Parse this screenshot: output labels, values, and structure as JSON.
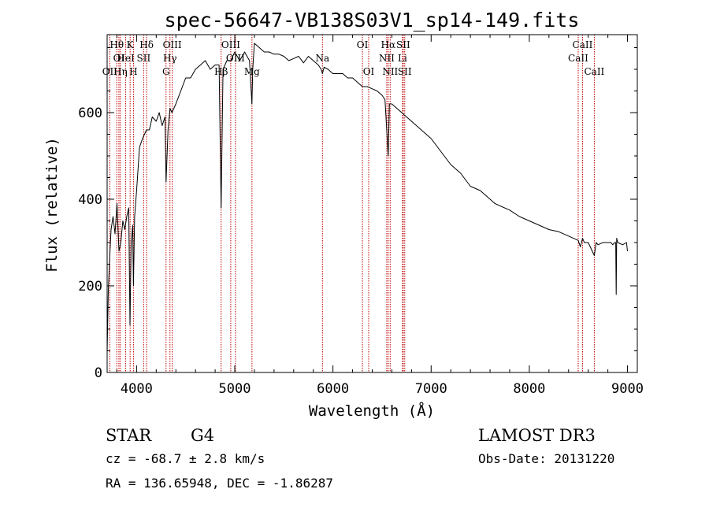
{
  "chart_data": {
    "type": "line",
    "title": "spec-56647-VB138S03V1_sp14-149.fits",
    "xlabel": "Wavelength (Å)",
    "ylabel": "Flux (relative)",
    "xlim": [
      3700,
      9100
    ],
    "ylim": [
      0,
      780
    ],
    "x_ticks": [
      {
        "value": 4000,
        "label": "4000"
      },
      {
        "value": 5000,
        "label": "5000"
      },
      {
        "value": 6000,
        "label": "6000"
      },
      {
        "value": 7000,
        "label": "7000"
      },
      {
        "value": 8000,
        "label": "8000"
      },
      {
        "value": 9000,
        "label": "9000"
      }
    ],
    "y_ticks": [
      {
        "value": 0,
        "label": "0"
      },
      {
        "value": 200,
        "label": "200"
      },
      {
        "value": 400,
        "label": "400"
      },
      {
        "value": 600,
        "label": "600"
      }
    ],
    "grid": false,
    "line_color": "#000000",
    "marker_color": "#c00000",
    "spectral_lines": [
      {
        "wavelength": 3727,
        "label": "OII",
        "row": 3
      },
      {
        "wavelength": 3798,
        "label": "Hθ",
        "row": 1
      },
      {
        "wavelength": 3820,
        "label": "OI",
        "row": 2
      },
      {
        "wavelength": 3835,
        "label": "Hη",
        "row": 3
      },
      {
        "wavelength": 3889,
        "label": "HeI",
        "row": 2
      },
      {
        "wavelength": 3934,
        "label": "K",
        "row": 1
      },
      {
        "wavelength": 3968,
        "label": "H",
        "row": 3
      },
      {
        "wavelength": 4072,
        "label": "SII",
        "row": 2
      },
      {
        "wavelength": 4102,
        "label": "Hδ",
        "row": 1
      },
      {
        "wavelength": 4300,
        "label": "G",
        "row": 3
      },
      {
        "wavelength": 4340,
        "label": "Hγ",
        "row": 2
      },
      {
        "wavelength": 4363,
        "label": "OIII",
        "row": 1
      },
      {
        "wavelength": 4861,
        "label": "Hβ",
        "row": 3
      },
      {
        "wavelength": 4959,
        "label": "OIII",
        "row": 1
      },
      {
        "wavelength": 5007,
        "label": "OIII",
        "row": 2
      },
      {
        "wavelength": 5175,
        "label": "Mg",
        "row": 3
      },
      {
        "wavelength": 5893,
        "label": "Na",
        "row": 2
      },
      {
        "wavelength": 6300,
        "label": "OI",
        "row": 1
      },
      {
        "wavelength": 6364,
        "label": "OI",
        "row": 3
      },
      {
        "wavelength": 6548,
        "label": "NII",
        "row": 2
      },
      {
        "wavelength": 6563,
        "label": "Hα",
        "row": 1
      },
      {
        "wavelength": 6583,
        "label": "NII",
        "row": 3
      },
      {
        "wavelength": 6708,
        "label": "Li",
        "row": 2
      },
      {
        "wavelength": 6716,
        "label": "SII",
        "row": 1
      },
      {
        "wavelength": 6731,
        "label": "SII",
        "row": 3
      },
      {
        "wavelength": 8498,
        "label": "CaII",
        "row": 2
      },
      {
        "wavelength": 8542,
        "label": "CaII",
        "row": 1
      },
      {
        "wavelength": 8662,
        "label": "CaII",
        "row": 3
      }
    ],
    "spectrum": {
      "x": [
        3700,
        3712,
        3725,
        3740,
        3760,
        3780,
        3800,
        3820,
        3840,
        3860,
        3880,
        3900,
        3920,
        3933,
        3945,
        3960,
        3968,
        3980,
        4000,
        4030,
        4060,
        4100,
        4130,
        4160,
        4200,
        4230,
        4260,
        4290,
        4300,
        4320,
        4340,
        4360,
        4400,
        4450,
        4500,
        4550,
        4600,
        4650,
        4700,
        4750,
        4800,
        4840,
        4861,
        4880,
        4920,
        4960,
        5000,
        5050,
        5100,
        5150,
        5175,
        5183,
        5200,
        5250,
        5300,
        5350,
        5400,
        5450,
        5500,
        5550,
        5600,
        5650,
        5700,
        5750,
        5800,
        5850,
        5880,
        5893,
        5910,
        5950,
        6000,
        6050,
        6100,
        6150,
        6200,
        6250,
        6300,
        6350,
        6400,
        6450,
        6500,
        6530,
        6548,
        6563,
        6575,
        6600,
        6650,
        6700,
        6750,
        6800,
        6900,
        7000,
        7100,
        7200,
        7300,
        7400,
        7500,
        7600,
        7650,
        7700,
        7800,
        7900,
        8000,
        8100,
        8200,
        8300,
        8400,
        8498,
        8520,
        8542,
        8560,
        8600,
        8662,
        8680,
        8700,
        8750,
        8800,
        8830,
        8850,
        8870,
        8880,
        8885,
        8890,
        8900,
        8950,
        8990,
        9000
      ],
      "flux": [
        45,
        190,
        260,
        330,
        360,
        320,
        390,
        280,
        300,
        350,
        330,
        360,
        380,
        110,
        300,
        340,
        200,
        360,
        420,
        520,
        540,
        560,
        560,
        590,
        580,
        600,
        570,
        590,
        440,
        560,
        610,
        600,
        620,
        650,
        680,
        680,
        700,
        710,
        720,
        700,
        710,
        710,
        380,
        700,
        720,
        720,
        740,
        720,
        740,
        720,
        620,
        700,
        760,
        750,
        740,
        740,
        735,
        735,
        730,
        720,
        725,
        730,
        715,
        730,
        720,
        710,
        700,
        690,
        705,
        700,
        690,
        690,
        690,
        680,
        680,
        670,
        660,
        660,
        655,
        650,
        640,
        630,
        560,
        500,
        620,
        620,
        610,
        600,
        590,
        580,
        560,
        540,
        510,
        480,
        460,
        430,
        420,
        400,
        390,
        385,
        375,
        360,
        350,
        340,
        330,
        325,
        315,
        305,
        290,
        310,
        300,
        300,
        270,
        300,
        295,
        300,
        300,
        300,
        295,
        300,
        300,
        180,
        310,
        300,
        295,
        300,
        280
      ]
    }
  },
  "info": {
    "object_class": "STAR",
    "subclass": "G4",
    "survey": "LAMOST DR3",
    "velocity": "cz = -68.7 ± 2.8 km/s",
    "obs_date": "Obs-Date: 20131220",
    "coordinates": "RA = 136.65948, DEC =  -1.86287"
  }
}
